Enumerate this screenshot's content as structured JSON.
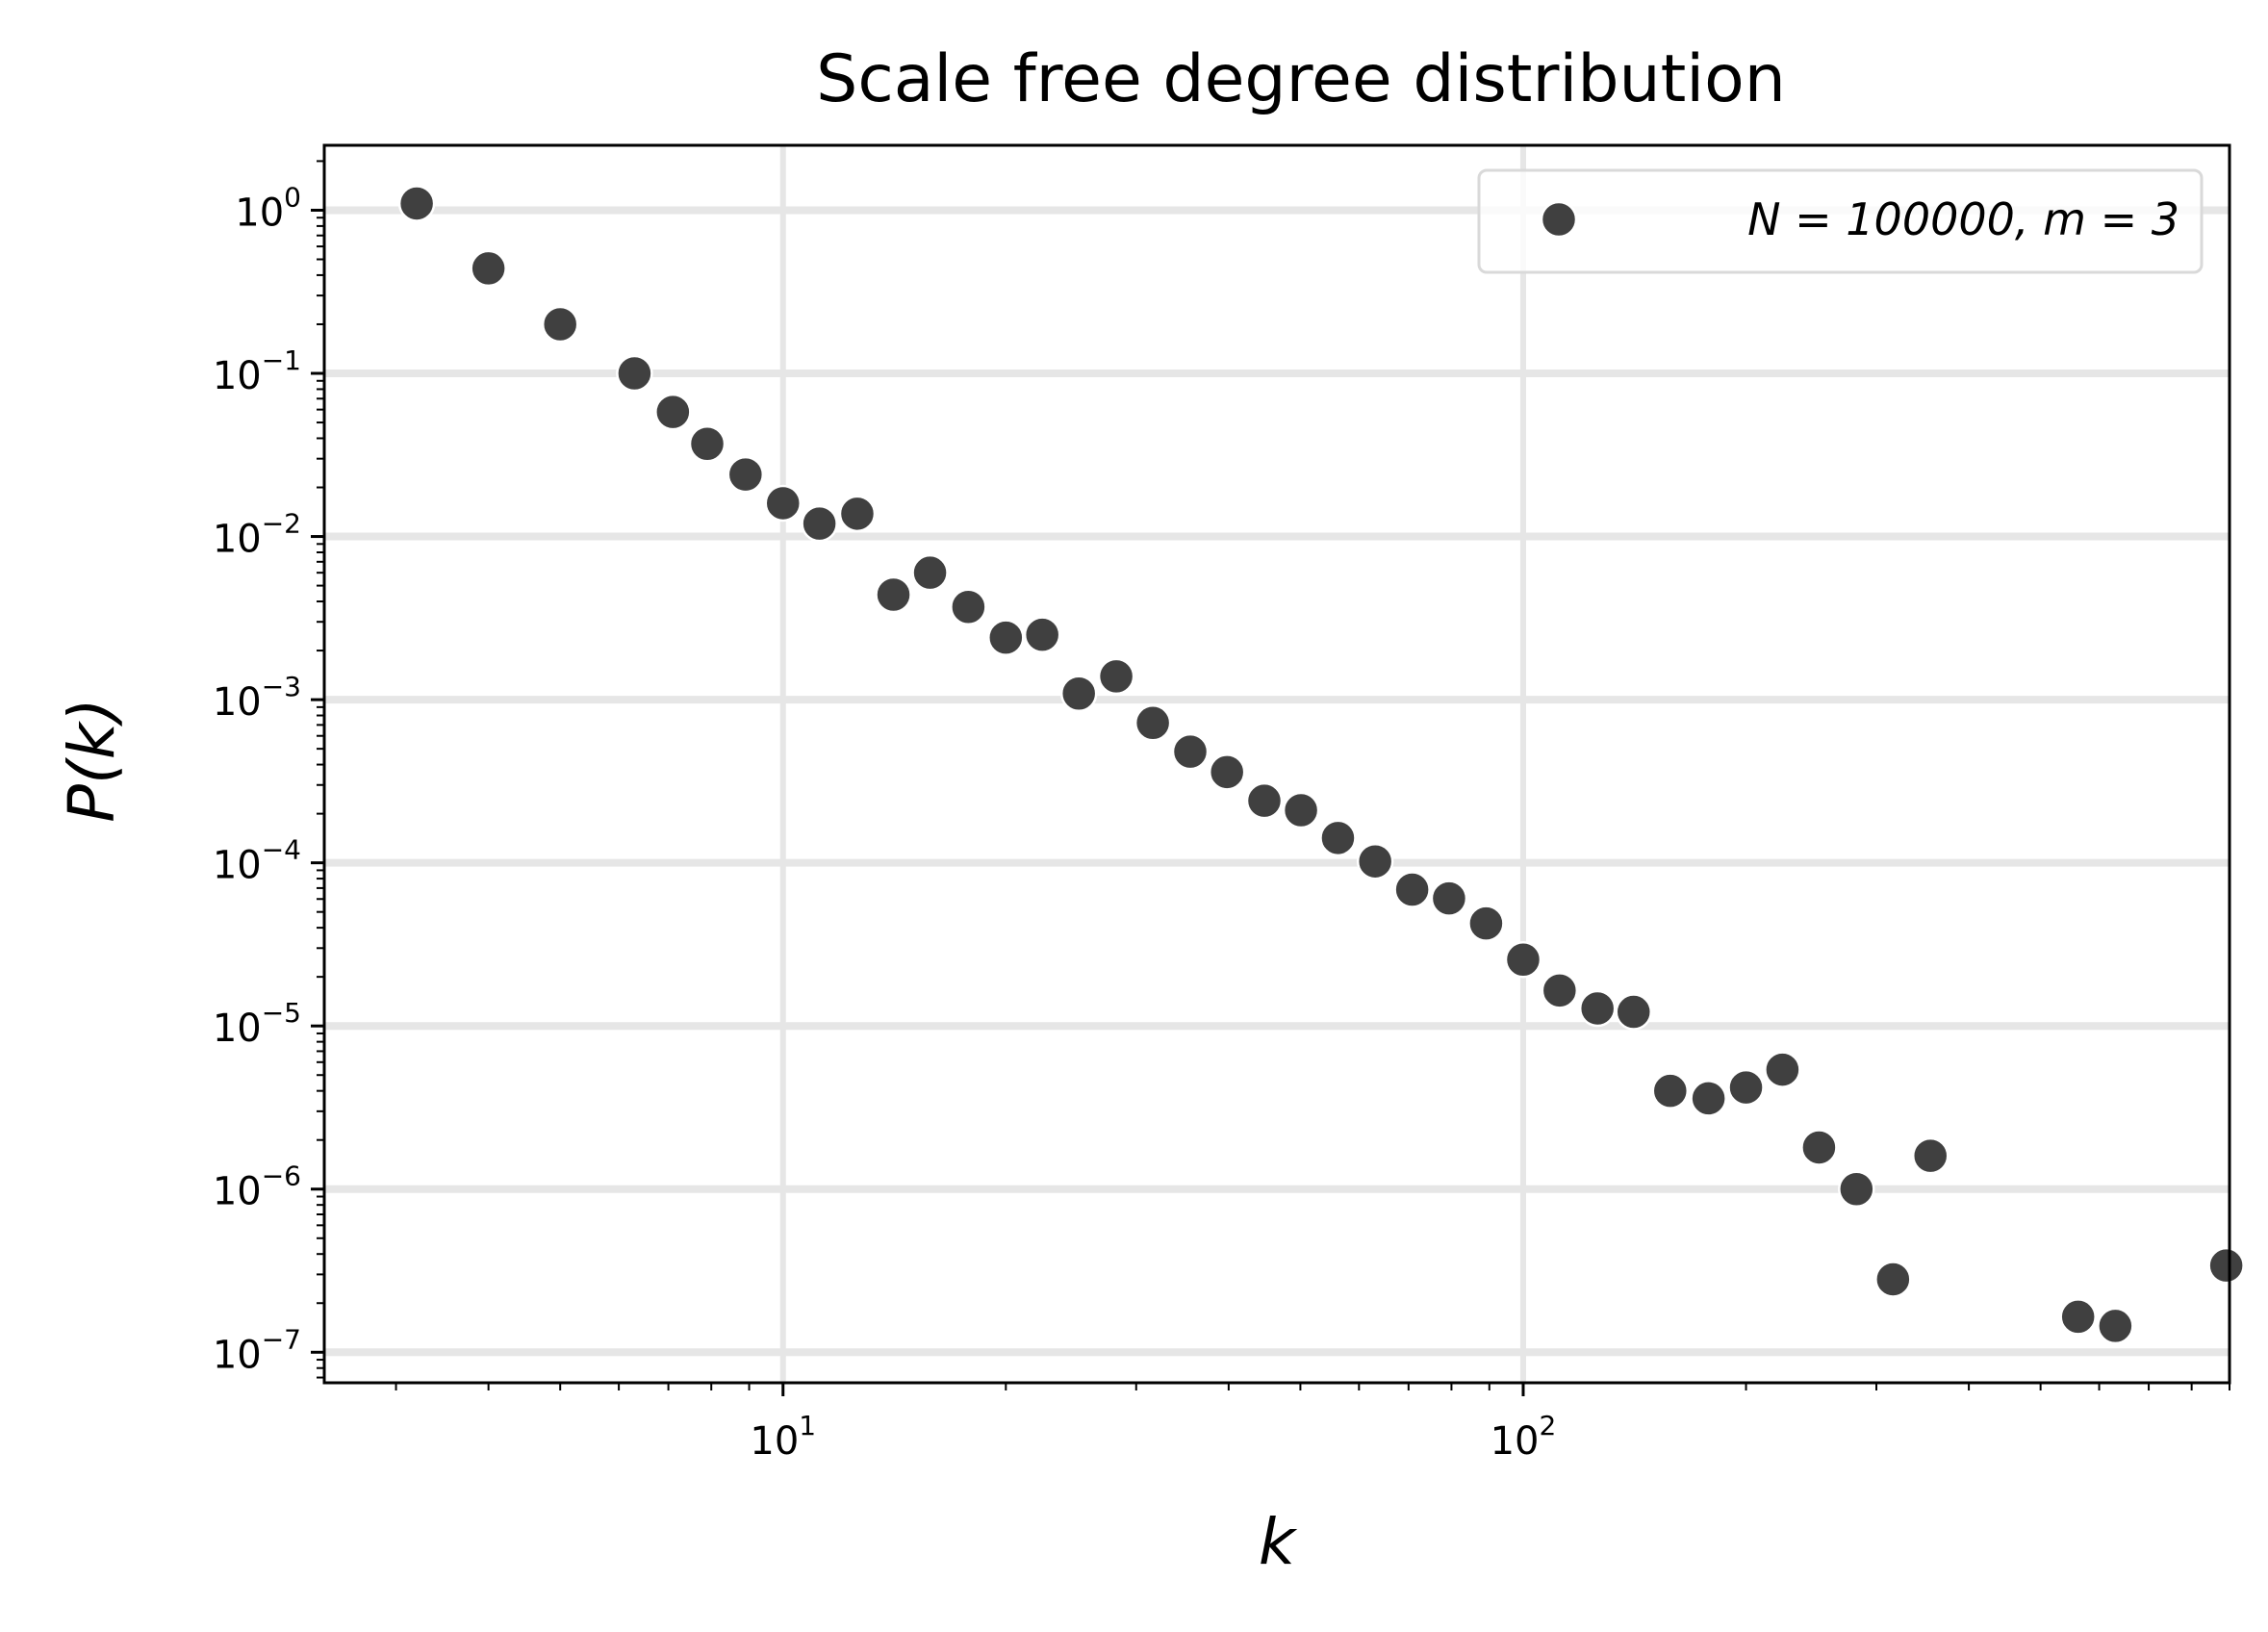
{
  "colors": {
    "marker": "#404040",
    "marker_edge": "#ffffff",
    "grid": "#e6e6e6",
    "axes": "#000000",
    "legend_border": "#d9d9d9"
  },
  "chart_data": {
    "type": "scatter",
    "title": "Scale free degree distribution",
    "xlabel": "k",
    "ylabel": "P(k)",
    "xscale": "log",
    "yscale": "log",
    "xlim": [
      2.4,
      900
    ],
    "ylim": [
      6.5e-08,
      2.5
    ],
    "grid": true,
    "legend_position": "top-right",
    "x_ticks": [
      {
        "value": 10,
        "base": "10",
        "exp": "1"
      },
      {
        "value": 100,
        "base": "10",
        "exp": "2"
      }
    ],
    "y_ticks": [
      {
        "value": 1,
        "base": "10",
        "exp": "0"
      },
      {
        "value": 0.1,
        "base": "10",
        "exp": "−1"
      },
      {
        "value": 0.01,
        "base": "10",
        "exp": "−2"
      },
      {
        "value": 0.001,
        "base": "10",
        "exp": "−3"
      },
      {
        "value": 0.0001,
        "base": "10",
        "exp": "−4"
      },
      {
        "value": 1e-05,
        "base": "10",
        "exp": "−5"
      },
      {
        "value": 1e-06,
        "base": "10",
        "exp": "−6"
      },
      {
        "value": 1e-07,
        "base": "10",
        "exp": "−7"
      }
    ],
    "series": [
      {
        "name": "N = 100000, m = 3",
        "x": [
          3.2,
          4.0,
          5.0,
          6.3,
          7.1,
          7.9,
          8.9,
          10.0,
          11.2,
          12.6,
          14.1,
          15.8,
          17.8,
          20.0,
          22.4,
          25.1,
          28.2,
          31.6,
          35.5,
          39.8,
          44.7,
          50.1,
          56.2,
          63.1,
          70.8,
          79.4,
          89.1,
          100,
          112,
          126,
          141,
          158,
          178,
          200,
          224,
          251,
          282,
          316,
          355,
          562,
          631,
          891
        ],
        "y": [
          1.1,
          0.44,
          0.2,
          0.1,
          0.058,
          0.037,
          0.024,
          0.016,
          0.012,
          0.0138,
          0.0044,
          0.006,
          0.0037,
          0.0024,
          0.0025,
          0.00109,
          0.00139,
          0.00072,
          0.00048,
          0.00036,
          0.00024,
          0.00021,
          0.000142,
          0.000102,
          6.85e-05,
          6.05e-05,
          4.25e-05,
          2.55e-05,
          1.65e-05,
          1.28e-05,
          1.22e-05,
          4e-06,
          3.6e-06,
          4.2e-06,
          5.4e-06,
          1.8e-06,
          1e-06,
          2.8e-07,
          1.6e-06,
          1.65e-07,
          1.45e-07,
          3.4e-07
        ]
      }
    ]
  }
}
